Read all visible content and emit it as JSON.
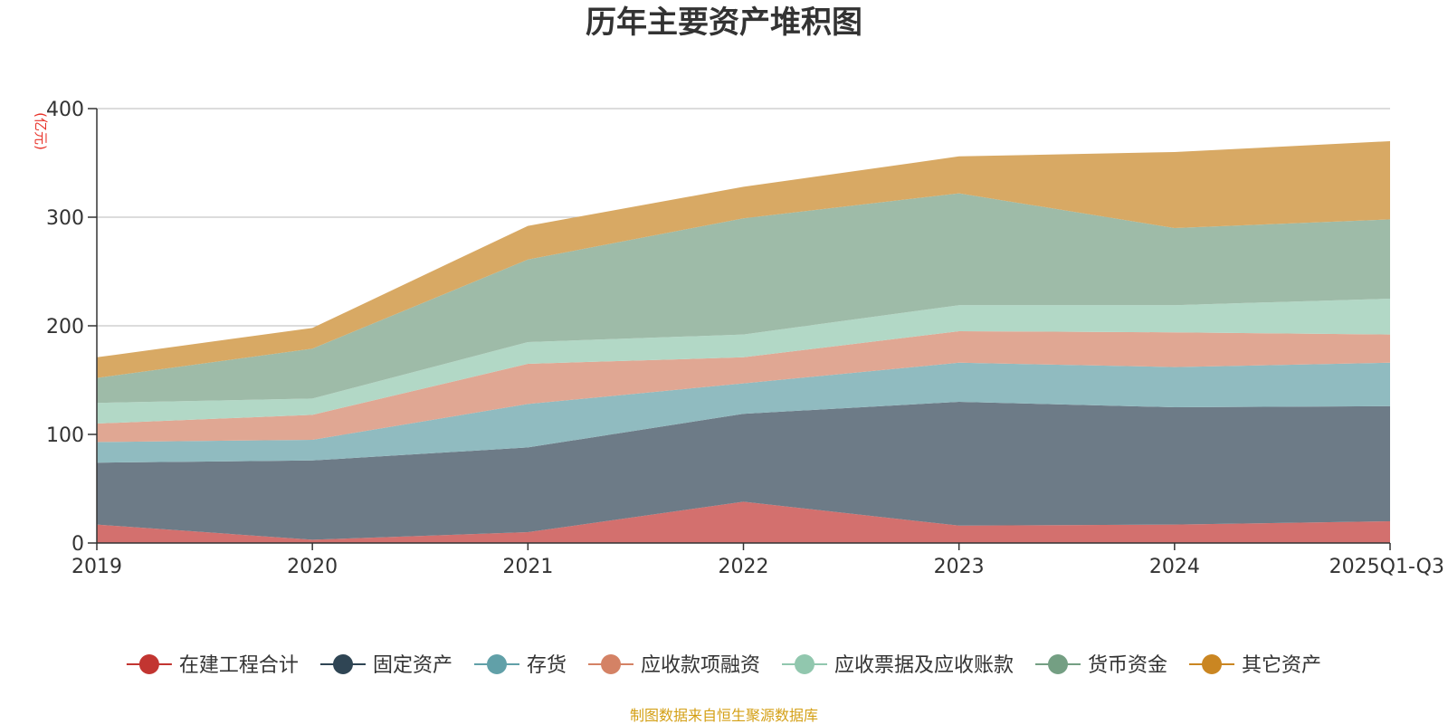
{
  "chart_data": {
    "type": "area",
    "stacked": true,
    "title": "历年主要资产堆积图",
    "ylabel": "(亿元)",
    "xlabel": "",
    "categories": [
      "2019",
      "2020",
      "2021",
      "2022",
      "2023",
      "2024",
      "2025Q1-Q3"
    ],
    "ylim": [
      0,
      400
    ],
    "yticks": [
      0,
      100,
      200,
      300,
      400
    ],
    "grid": true,
    "legend_position": "bottom",
    "series": [
      {
        "name": "在建工程合计",
        "color": "#c23531",
        "fill": "#d3706e",
        "values": [
          17,
          3,
          10,
          38,
          16,
          17,
          20
        ]
      },
      {
        "name": "固定资产",
        "color": "#2f4554",
        "fill": "#6d7b87",
        "values": [
          57,
          73,
          78,
          81,
          114,
          108,
          106
        ]
      },
      {
        "name": "存货",
        "color": "#61a0a8",
        "fill": "#90bbc0",
        "values": [
          19,
          19,
          40,
          28,
          36,
          37,
          40
        ]
      },
      {
        "name": "应收款项融资",
        "color": "#d48265",
        "fill": "#e0a793",
        "values": [
          17,
          23,
          37,
          24,
          29,
          32,
          26
        ]
      },
      {
        "name": "应收票据及应收账款",
        "color": "#91c7ae",
        "fill": "#b2d8c6",
        "values": [
          19,
          15,
          20,
          21,
          24,
          25,
          33
        ]
      },
      {
        "name": "货币资金",
        "color": "#749f83",
        "fill": "#9ebba8",
        "values": [
          23,
          46,
          76,
          107,
          103,
          71,
          73
        ]
      },
      {
        "name": "其它资产",
        "color": "#ca8622",
        "fill": "#d8a964",
        "values": [
          19,
          19,
          31,
          29,
          34,
          70,
          72
        ]
      }
    ],
    "source": "制图数据来自恒生聚源数据库"
  }
}
